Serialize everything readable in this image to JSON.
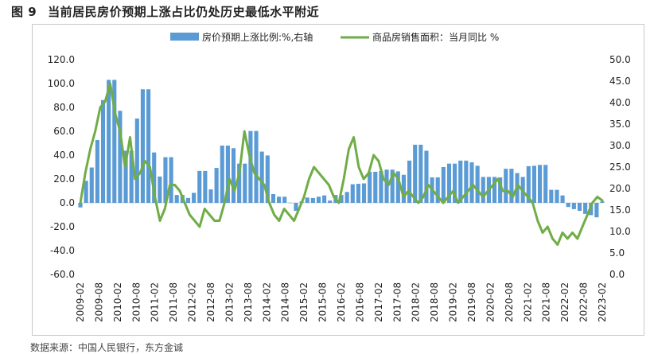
{
  "figure": {
    "number": "图 9",
    "title": "当前居民房价预期上涨占比仍处历史最低水平附近",
    "source": "数据来源：中国人民银行，东方金诚"
  },
  "chart_data": {
    "type": "bar+line",
    "title": "当前居民房价预期上涨占比仍处历史最低水平附近",
    "x_tick_labels": [
      "2009-02",
      "2009-08",
      "2010-02",
      "2010-08",
      "2011-02",
      "2011-08",
      "2012-02",
      "2012-08",
      "2013-02",
      "2013-08",
      "2014-02",
      "2014-08",
      "2015-02",
      "2015-08",
      "2016-02",
      "2016-08",
      "2017-02",
      "2017-08",
      "2018-02",
      "2018-08",
      "2019-02",
      "2019-08",
      "2020-02",
      "2020-08",
      "2021-02",
      "2021-08",
      "2022-02",
      "2022-08",
      "2023-02"
    ],
    "left_axis": {
      "range": [
        -60,
        120
      ],
      "step": 20,
      "tick_labels": [
        "-60.0",
        "-40.0",
        "-20.0",
        "0.0",
        "20.0",
        "40.0",
        "60.0",
        "80.0",
        "100.0",
        "120.0"
      ]
    },
    "right_axis": {
      "range": [
        0,
        50
      ],
      "step": 5,
      "tick_labels": [
        "0.0",
        "5.0",
        "10.0",
        "15.0",
        "20.0",
        "25.0",
        "30.0",
        "35.0",
        "40.0",
        "45.0",
        "50.0"
      ]
    },
    "series": [
      {
        "name": "房价预期上涨比例:%,右轴",
        "type": "bar",
        "axis": "right",
        "color": "#5b9bd5",
        "sample_period_months": 3,
        "values": [
          15.6,
          21.8,
          24.9,
          31.3,
          40.6,
          45.3,
          45.3,
          38.1,
          28.8,
          28.8,
          36.3,
          43.1,
          43.1,
          28.4,
          22.8,
          27.3,
          27.3,
          18.5,
          18.5,
          17.8,
          19.0,
          24.1,
          24.1,
          19.8,
          24.8,
          30.0,
          30.0,
          29.4,
          25.8,
          25.8,
          33.4,
          33.4,
          28.6,
          27.7,
          18.7,
          18.1,
          18.1,
          16.7,
          14.8,
          17.0,
          17.9,
          17.8,
          18.1,
          18.4,
          17.2,
          18.5,
          18.5,
          19.2,
          21.0,
          21.1,
          21.2,
          23.9,
          23.9,
          24.1,
          24.4,
          24.4,
          24.0,
          23.2,
          26.5,
          30.2,
          30.2,
          28.8,
          22.6,
          22.6,
          25.0,
          25.8,
          25.8,
          26.5,
          26.5,
          26.1,
          25.3,
          22.7,
          22.7,
          22.7,
          22.6,
          24.6,
          24.6,
          23.6,
          22.7,
          25.2,
          25.3,
          25.5,
          25.5,
          19.7,
          19.7,
          18.4,
          15.7,
          15.2,
          14.8,
          14.1,
          13.8,
          13.3,
          17.0
        ]
      },
      {
        "name": "商品房销售面积：当月同比 %",
        "type": "line",
        "axis": "left",
        "color": "#70ad47",
        "values": [
          0,
          25,
          45,
          60,
          80,
          85,
          100,
          75,
          60,
          30,
          55,
          20,
          25,
          35,
          30,
          5,
          -15,
          -5,
          15,
          15,
          10,
          0,
          -10,
          -15,
          -20,
          -5,
          -10,
          -15,
          -15,
          0,
          20,
          10,
          25,
          60,
          40,
          25,
          20,
          15,
          0,
          -10,
          -15,
          -5,
          -10,
          -15,
          -5,
          5,
          20,
          30,
          25,
          20,
          15,
          5,
          0,
          20,
          45,
          55,
          30,
          20,
          25,
          40,
          35,
          20,
          15,
          25,
          20,
          5,
          10,
          5,
          0,
          5,
          15,
          10,
          5,
          0,
          5,
          10,
          0,
          5,
          10,
          15,
          10,
          5,
          10,
          15,
          20,
          10,
          10,
          5,
          15,
          10,
          5,
          0,
          -15,
          -25,
          -20,
          -30,
          -35,
          -25,
          -30,
          -25,
          -30,
          -20,
          -10,
          0,
          5,
          2
        ]
      }
    ]
  }
}
